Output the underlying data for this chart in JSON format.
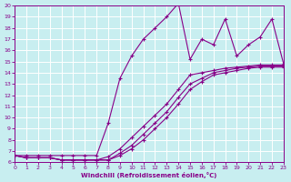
{
  "xlabel": "Windchill (Refroidissement éolien,°C)",
  "bg_color": "#c8eef0",
  "grid_color": "#ffffff",
  "line_color": "#880088",
  "xlim": [
    0,
    23
  ],
  "ylim": [
    6,
    20
  ],
  "xticks": [
    0,
    1,
    2,
    3,
    4,
    5,
    6,
    7,
    8,
    9,
    10,
    11,
    12,
    13,
    14,
    15,
    16,
    17,
    18,
    19,
    20,
    21,
    22,
    23
  ],
  "yticks": [
    6,
    7,
    8,
    9,
    10,
    11,
    12,
    13,
    14,
    15,
    16,
    17,
    18,
    19,
    20
  ],
  "main_x": [
    0,
    1,
    2,
    3,
    4,
    5,
    6,
    7,
    8,
    9,
    10,
    11,
    12,
    13,
    14,
    15,
    16,
    17,
    18,
    19,
    20,
    21,
    22,
    23
  ],
  "main_y": [
    6.6,
    6.6,
    6.6,
    6.6,
    6.6,
    6.6,
    6.6,
    6.6,
    9.5,
    13.5,
    15.5,
    17.0,
    18.0,
    19.0,
    20.2,
    15.2,
    17.0,
    16.5,
    18.8,
    15.5,
    16.5,
    17.2,
    18.8,
    14.8
  ],
  "line1_x": [
    0,
    1,
    2,
    3,
    4,
    5,
    6,
    7,
    8,
    9,
    10,
    11,
    12,
    13,
    14,
    15,
    16,
    17,
    18,
    19,
    20,
    21,
    22,
    23
  ],
  "line1_y": [
    6.6,
    6.4,
    6.4,
    6.4,
    6.2,
    6.2,
    6.2,
    6.2,
    6.2,
    6.6,
    7.2,
    8.0,
    9.0,
    10.0,
    11.2,
    12.5,
    13.2,
    13.8,
    14.0,
    14.2,
    14.4,
    14.5,
    14.5,
    14.5
  ],
  "line2_x": [
    0,
    1,
    2,
    3,
    4,
    5,
    6,
    7,
    8,
    9,
    10,
    11,
    12,
    13,
    14,
    15,
    16,
    17,
    18,
    19,
    20,
    21,
    22,
    23
  ],
  "line2_y": [
    6.6,
    6.4,
    6.4,
    6.4,
    6.2,
    6.2,
    6.2,
    6.2,
    6.2,
    6.8,
    7.5,
    8.5,
    9.5,
    10.5,
    11.8,
    13.0,
    13.5,
    14.0,
    14.2,
    14.4,
    14.5,
    14.6,
    14.6,
    14.6
  ],
  "line3_x": [
    0,
    1,
    2,
    3,
    4,
    5,
    6,
    7,
    8,
    9,
    10,
    11,
    12,
    13,
    14,
    15,
    16,
    17,
    18,
    19,
    20,
    21,
    22,
    23
  ],
  "line3_y": [
    6.6,
    6.4,
    6.4,
    6.4,
    6.2,
    6.2,
    6.2,
    6.2,
    6.5,
    7.2,
    8.2,
    9.2,
    10.2,
    11.2,
    12.5,
    13.8,
    14.0,
    14.2,
    14.4,
    14.5,
    14.6,
    14.7,
    14.7,
    14.7
  ]
}
